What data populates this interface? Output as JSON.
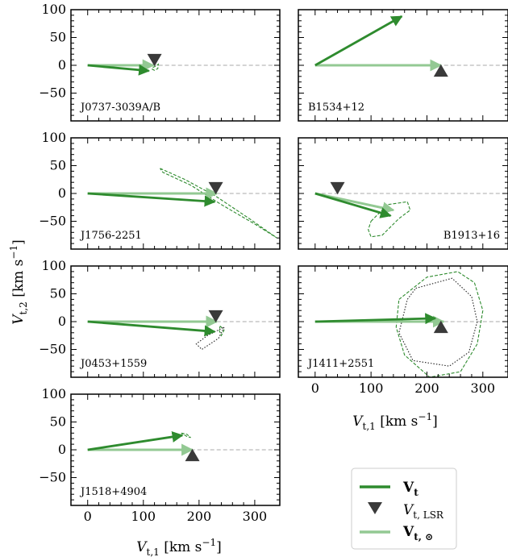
{
  "colors": {
    "vt": "#2e8b2e",
    "vsun": "#93c993",
    "lsr": "#3a3a3a",
    "zero_line": "#aaaaaa",
    "contour_dotted": "#222222"
  },
  "axis_labels": {
    "x_main": "V",
    "x_sub": "t,1",
    "x_unit": " [km s",
    "x_exp": "−1",
    "x_close": "]",
    "y_main": "V",
    "y_sub": "t,2",
    "y_unit": " [km s",
    "y_exp": "−1",
    "y_close": "]"
  },
  "legend": {
    "vt_main": "V",
    "vt_sub": "t",
    "lsr_main": "V",
    "lsr_sub": "t, LSR",
    "vsun_main": "V",
    "vsun_sub": "t, ⊙"
  },
  "chart_data": {
    "type": "quiver",
    "xlim": [
      -30,
      345
    ],
    "ylim": [
      -100,
      100
    ],
    "xticks": [
      "0",
      "100",
      "200",
      "300"
    ],
    "yticks": [
      "100",
      "50",
      "0",
      "−50"
    ],
    "panels": [
      {
        "label": "J0737-3039A/B",
        "vt": [
          110,
          -10
        ],
        "vsun": [
          118,
          0
        ],
        "lsr": [
          120,
          10
        ],
        "dashed_contour": [
          [
            117,
            -4
          ],
          [
            123,
            -1
          ],
          [
            127,
            2
          ],
          [
            126,
            -6
          ],
          [
            120,
            -9
          ],
          [
            116,
            -7
          ],
          [
            117,
            -4
          ]
        ],
        "dotted_contour": [],
        "x_ticklabels": false,
        "y_ticklabels": true
      },
      {
        "label": "B1534+12",
        "vt": [
          155,
          88
        ],
        "vsun": [
          225,
          0
        ],
        "lsr": [
          225,
          -10
        ],
        "dashed_contour": [],
        "dotted_contour": [],
        "x_ticklabels": false,
        "y_ticklabels": false
      },
      {
        "label": "J1756-2251",
        "vt": [
          228,
          -15
        ],
        "vsun": [
          232,
          0
        ],
        "lsr": [
          230,
          10
        ],
        "dashed_contour": [
          [
            130,
            45
          ],
          [
            175,
            25
          ],
          [
            230,
            -5
          ],
          [
            290,
            -45
          ],
          [
            340,
            -80
          ],
          [
            300,
            -55
          ],
          [
            240,
            -20
          ],
          [
            185,
            15
          ],
          [
            135,
            38
          ],
          [
            130,
            45
          ]
        ],
        "dotted_contour": [],
        "x_ticklabels": false,
        "y_ticklabels": true
      },
      {
        "label": "B1913+16",
        "vt": [
          135,
          -40
        ],
        "vsun": [
          140,
          -30
        ],
        "lsr": [
          40,
          10
        ],
        "dashed_contour": [
          [
            100,
            -50
          ],
          [
            130,
            -20
          ],
          [
            165,
            -15
          ],
          [
            170,
            -30
          ],
          [
            150,
            -45
          ],
          [
            120,
            -75
          ],
          [
            100,
            -78
          ],
          [
            95,
            -65
          ],
          [
            100,
            -50
          ]
        ],
        "dotted_contour": [],
        "x_ticklabels": false,
        "y_ticklabels": false
      },
      {
        "label": "J0453+1559",
        "vt": [
          228,
          -18
        ],
        "vsun": [
          232,
          0
        ],
        "lsr": [
          230,
          10
        ],
        "dashed_contour": [
          [
            238,
            -8
          ],
          [
            245,
            -15
          ],
          [
            240,
            -25
          ],
          [
            236,
            -15
          ],
          [
            238,
            -8
          ]
        ],
        "dotted_contour": [
          [
            245,
            -10
          ],
          [
            235,
            -30
          ],
          [
            205,
            -50
          ],
          [
            195,
            -40
          ],
          [
            215,
            -25
          ],
          [
            245,
            -10
          ]
        ],
        "x_ticklabels": false,
        "y_ticklabels": true
      },
      {
        "label": "J1411+2551",
        "vt": [
          215,
          6
        ],
        "vsun": [
          230,
          0
        ],
        "lsr": [
          225,
          -10
        ],
        "dashed_contour": [
          [
            150,
            40
          ],
          [
            200,
            80
          ],
          [
            255,
            90
          ],
          [
            285,
            70
          ],
          [
            300,
            20
          ],
          [
            290,
            -40
          ],
          [
            260,
            -90
          ],
          [
            205,
            -100
          ],
          [
            160,
            -60
          ],
          [
            145,
            -10
          ],
          [
            150,
            40
          ]
        ],
        "dotted_contour": [
          [
            180,
            60
          ],
          [
            245,
            78
          ],
          [
            280,
            45
          ],
          [
            290,
            0
          ],
          [
            275,
            -55
          ],
          [
            240,
            -80
          ],
          [
            175,
            -70
          ],
          [
            150,
            -20
          ],
          [
            165,
            40
          ],
          [
            180,
            60
          ]
        ],
        "x_ticklabels": true,
        "y_ticklabels": false
      },
      {
        "label": "J1518+4904",
        "vt": [
          170,
          26
        ],
        "vsun": [
          188,
          0
        ],
        "lsr": [
          188,
          -10
        ],
        "dashed_contour": [
          [
            168,
            30
          ],
          [
            178,
            28
          ],
          [
            185,
            22
          ],
          [
            178,
            24
          ],
          [
            168,
            30
          ]
        ],
        "dotted_contour": [],
        "x_ticklabels": true,
        "y_ticklabels": true
      }
    ]
  }
}
